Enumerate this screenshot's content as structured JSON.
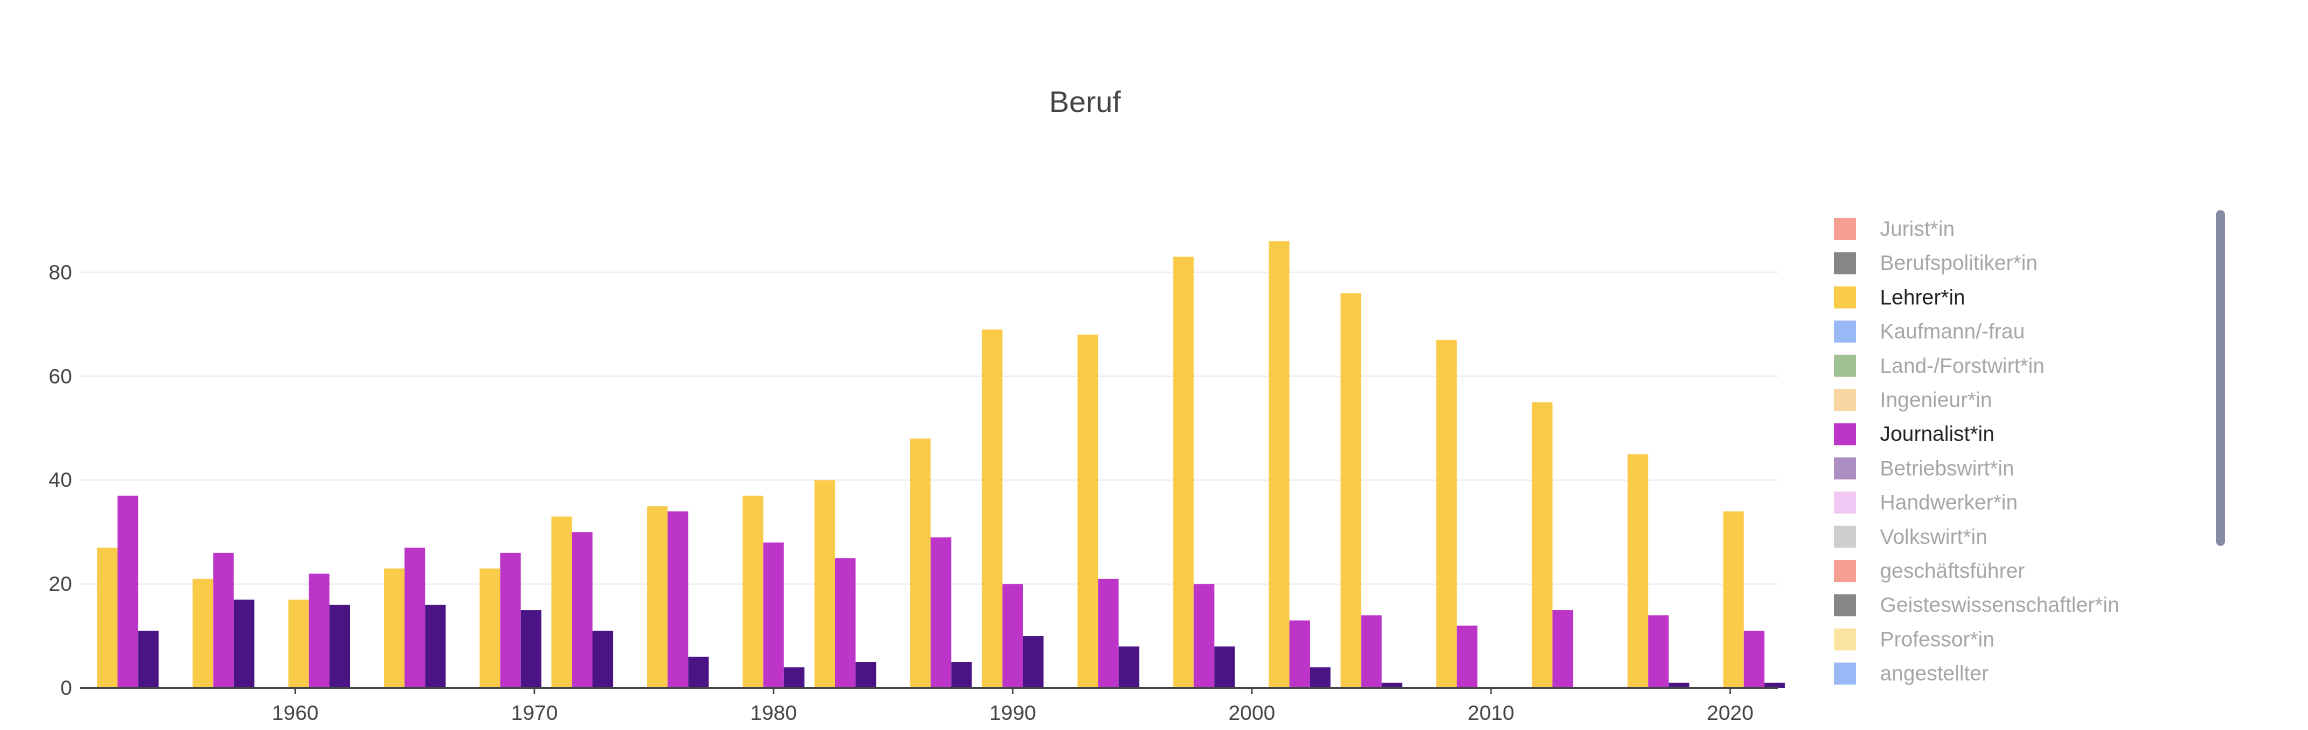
{
  "chart_data": {
    "type": "bar",
    "title": "Beruf",
    "xlabel": "",
    "ylabel": "",
    "ylim": [
      0,
      92
    ],
    "xlim": [
      1951,
      2022
    ],
    "y_ticks": [
      0,
      20,
      40,
      60,
      80
    ],
    "x_ticks": [
      1960,
      1970,
      1980,
      1990,
      2000,
      2010,
      2020
    ],
    "grid": true,
    "legend_position": "right",
    "x": [
      1953,
      1957,
      1961,
      1965,
      1969,
      1972,
      1976,
      1980,
      1983,
      1987,
      1990,
      1994,
      1998,
      2002,
      2005,
      2009,
      2013,
      2017,
      2021
    ],
    "series": [
      {
        "name": "Lehrer*in",
        "color": "#f9cb48",
        "visible": true,
        "values": [
          27,
          21,
          17,
          23,
          23,
          33,
          35,
          37,
          40,
          48,
          69,
          68,
          83,
          86,
          76,
          67,
          55,
          45,
          34
        ]
      },
      {
        "name": "Journalist*in",
        "color": "#bc34c8",
        "visible": true,
        "values": [
          37,
          26,
          22,
          27,
          26,
          30,
          34,
          28,
          25,
          29,
          20,
          21,
          20,
          13,
          14,
          12,
          15,
          14,
          11
        ]
      },
      {
        "name": "",
        "color": "#4b1485",
        "visible": true,
        "values": [
          11,
          17,
          16,
          16,
          15,
          11,
          6,
          4,
          5,
          5,
          10,
          8,
          8,
          4,
          1,
          0,
          0,
          1,
          1
        ]
      }
    ],
    "legend_entries": [
      {
        "name": "Jurist*in",
        "color": "#f4998c",
        "active": false
      },
      {
        "name": "Berufspolitiker*in",
        "color": "#808080",
        "active": false
      },
      {
        "name": "Lehrer*in",
        "color": "#f9cb48",
        "active": true
      },
      {
        "name": "Kaufmann/-frau",
        "color": "#94b4f5",
        "active": false
      },
      {
        "name": "Land-/Forstwirt*in",
        "color": "#9bbe8c",
        "active": false
      },
      {
        "name": "Ingenieur*in",
        "color": "#f9d39c",
        "active": false
      },
      {
        "name": "Journalist*in",
        "color": "#bc34c8",
        "active": true
      },
      {
        "name": "Betriebswirt*in",
        "color": "#a888c0",
        "active": false
      },
      {
        "name": "Handwerker*in",
        "color": "#f0c4f2",
        "active": false
      },
      {
        "name": "Volkswirt*in",
        "color": "#cccccc",
        "active": false
      },
      {
        "name": "geschäftsführer",
        "color": "#f4998c",
        "active": false
      },
      {
        "name": "Geisteswissenschaftler*in",
        "color": "#808080",
        "active": false
      },
      {
        "name": "Professor*in",
        "color": "#fbe39c",
        "active": false
      },
      {
        "name": "angestellter",
        "color": "#94b4f5",
        "active": false
      }
    ]
  },
  "colors": {
    "text": "#444444",
    "legend_active": "#222222",
    "legend_inactive": "#a6a6a6",
    "grid": "#eeeeee",
    "axis": "#444444",
    "scrollbar": "#868ba2"
  }
}
